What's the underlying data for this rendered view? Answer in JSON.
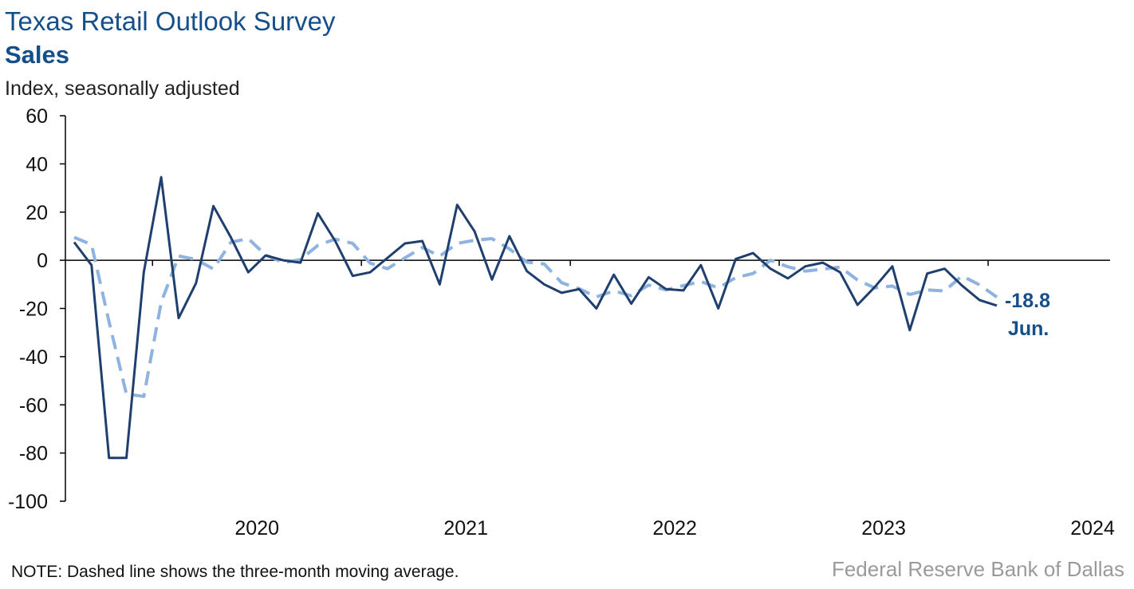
{
  "header": {
    "title": "Texas Retail Outlook Survey",
    "subtitle": "Sales",
    "ylabel": "Index, seasonally adjusted"
  },
  "footer": {
    "note": "NOTE: Dashed line shows the three-month moving average.",
    "source": "Federal Reserve Bank of Dallas"
  },
  "colors": {
    "title": "#154f8a",
    "series_solid": "#1f3f6e",
    "series_dashed": "#8fb3e0",
    "axis": "#000000",
    "source": "#9a9a9a"
  },
  "chart_data": {
    "type": "line",
    "title": "Texas Retail Outlook Survey",
    "subtitle": "Sales",
    "ylabel": "Index, seasonally adjusted",
    "xlabel": "",
    "ylim": [
      -100,
      60
    ],
    "yticks": [
      60,
      40,
      20,
      0,
      -20,
      -40,
      -60,
      -80,
      -100
    ],
    "xticks": [
      "2020",
      "2021",
      "2022",
      "2023",
      "2024"
    ],
    "x_start": "2019-08",
    "x_end": "2024-06",
    "grid": false,
    "legend": "none",
    "series": [
      {
        "style": "solid",
        "values": [
          7.5,
          -2,
          -82,
          -82,
          -5,
          34.5,
          -24,
          -9.5,
          22.5,
          9.5,
          -5,
          2,
          0,
          -1,
          19.5,
          8,
          -6.5,
          -5,
          1,
          7,
          8,
          -10,
          23,
          12,
          -8,
          10,
          -4.5,
          -10,
          -13.5,
          -12,
          -20,
          -6,
          -18,
          -7,
          -12,
          -12.5,
          -2,
          -20,
          0.5,
          3,
          -3.5,
          -7.5,
          -2.5,
          -1,
          -5,
          -18.5,
          -11,
          -2.5,
          -29,
          -5.5,
          -3.5,
          -10.5,
          -16.5,
          -18.8
        ]
      },
      {
        "style": "dashed",
        "values": [
          9.5,
          6.5,
          -25.5,
          -55.5,
          -56.5,
          -17.5,
          1.8,
          0.3,
          -3.6,
          7.5,
          9,
          2.2,
          -1,
          0.3,
          6.2,
          8.8,
          7,
          -1.2,
          -3.5,
          1,
          5.3,
          1.7,
          7,
          8.3,
          9,
          4.7,
          -0.8,
          -1.5,
          -9.3,
          -11.8,
          -15.2,
          -12.7,
          -14.7,
          -10.3,
          -12.3,
          -10.5,
          -8.8,
          -11.5,
          -7.2,
          -5.5,
          0,
          -2.7,
          -4.5,
          -3.7,
          -2.8,
          -8.2,
          -11.5,
          -10.7,
          -14.2,
          -12.3,
          -12.7,
          -6.5,
          -10.2,
          -15.3
        ]
      }
    ],
    "annotations": [
      {
        "text": "-18.8"
      },
      {
        "text": "Jun."
      }
    ]
  }
}
